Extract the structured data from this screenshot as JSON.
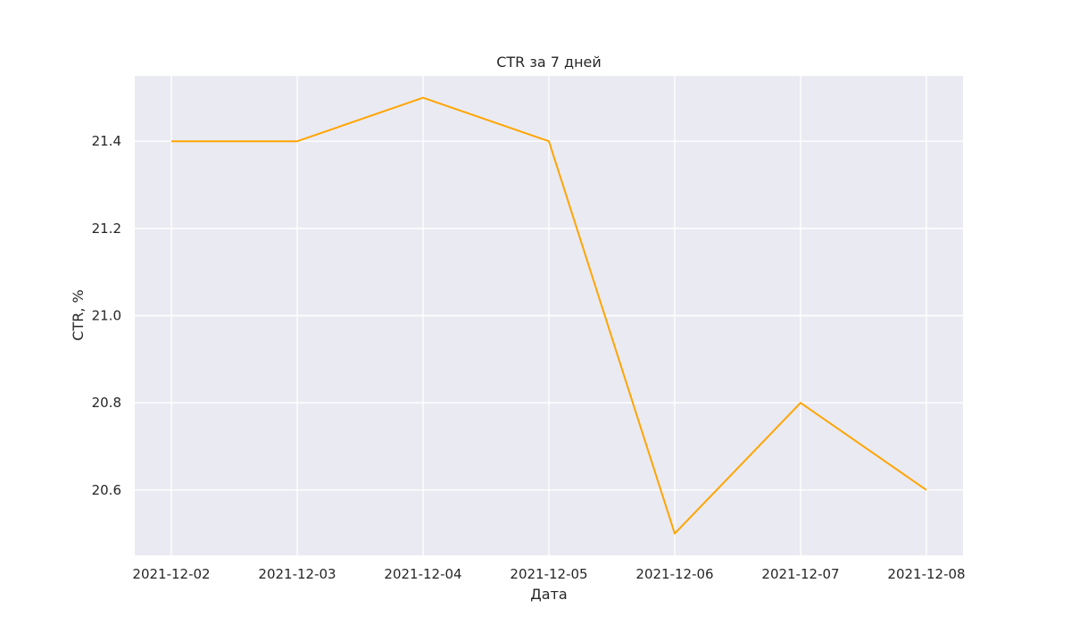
{
  "chart_data": {
    "type": "line",
    "title": "CTR за 7 дней",
    "xlabel": "Дата",
    "ylabel": "CTR, %",
    "x": [
      "2021-12-02",
      "2021-12-03",
      "2021-12-04",
      "2021-12-05",
      "2021-12-06",
      "2021-12-07",
      "2021-12-08"
    ],
    "series": [
      {
        "values": [
          21.4,
          21.4,
          21.5,
          21.4,
          20.5,
          20.8,
          20.6
        ],
        "color": "#FFA500"
      }
    ],
    "yticks": [
      "20.6",
      "20.8",
      "21.0",
      "21.2",
      "21.4"
    ],
    "ylim": [
      20.45,
      21.55
    ],
    "grid": true,
    "background": "#EAEAF2",
    "grid_color": "#FFFFFF"
  }
}
